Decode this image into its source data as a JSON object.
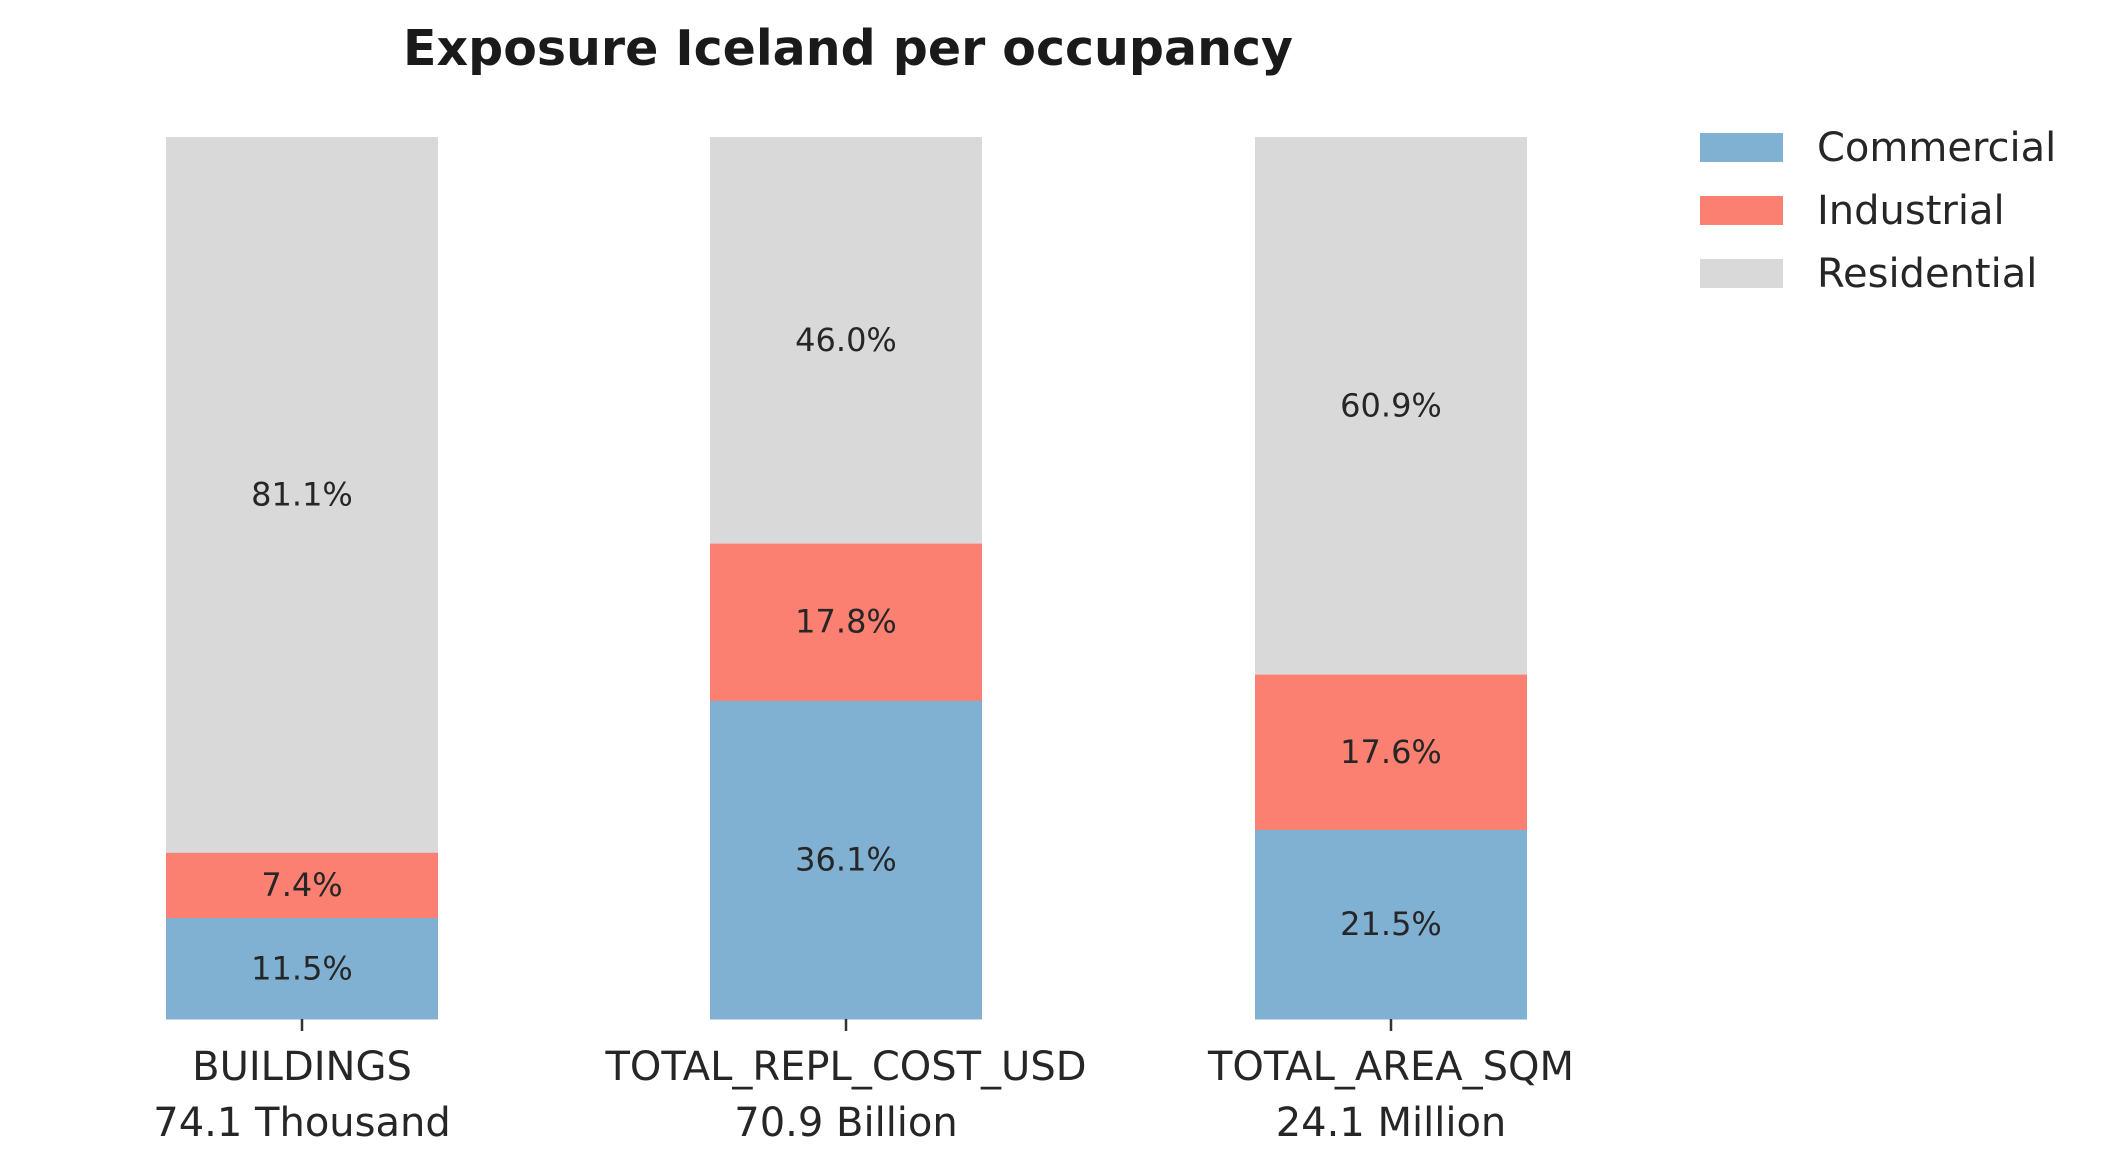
{
  "chart_data": {
    "type": "bar",
    "stacked": true,
    "normalized_percent": true,
    "title": "Exposure Iceland per occupancy",
    "categories": [
      {
        "name": "BUILDINGS",
        "total": "74.1 Thousand"
      },
      {
        "name": "TOTAL_REPL_COST_USD",
        "total": "70.9 Billion"
      },
      {
        "name": "TOTAL_AREA_SQM",
        "total": "24.1 Million"
      }
    ],
    "series": [
      {
        "name": "Commercial",
        "color": "#80b1d3",
        "values": [
          11.5,
          36.1,
          21.5
        ],
        "labels": [
          "11.5%",
          "36.1%",
          "21.5%"
        ]
      },
      {
        "name": "Industrial",
        "color": "#fb8072",
        "values": [
          7.4,
          17.8,
          17.6
        ],
        "labels": [
          "7.4%",
          "17.8%",
          "17.6%"
        ]
      },
      {
        "name": "Residential",
        "color": "#d9d9d9",
        "values": [
          81.1,
          46.0,
          60.9
        ],
        "labels": [
          "81.1%",
          "46.0%",
          "60.9%"
        ]
      }
    ],
    "ylim": [
      0,
      100
    ],
    "legend": "top-right",
    "grid": false
  }
}
